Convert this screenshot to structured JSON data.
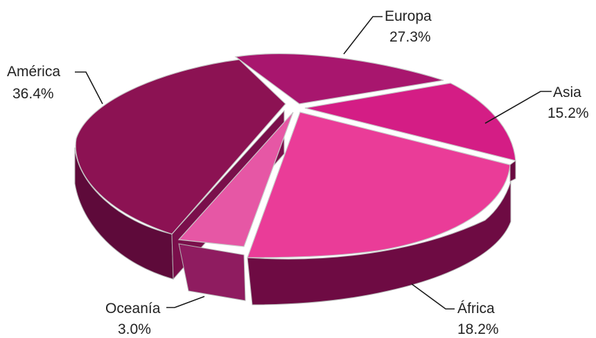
{
  "chart_data": {
    "type": "pie",
    "style": "3d-exploded",
    "title": "",
    "slices": [
      {
        "name": "Europa",
        "value": 27.3,
        "label": "27.3%",
        "color": "#a8166e"
      },
      {
        "name": "Asia",
        "value": 15.2,
        "label": "15.2%",
        "color": "#d41d85"
      },
      {
        "name": "África",
        "value": 18.2,
        "label": "18.2%",
        "color": "#ea3c98"
      },
      {
        "name": "Oceanía",
        "value": 3.0,
        "label": "3.0%",
        "color": "#e657a5"
      },
      {
        "name": "América",
        "value": 36.4,
        "label": "36.4%",
        "color": "#8c1253"
      }
    ]
  }
}
